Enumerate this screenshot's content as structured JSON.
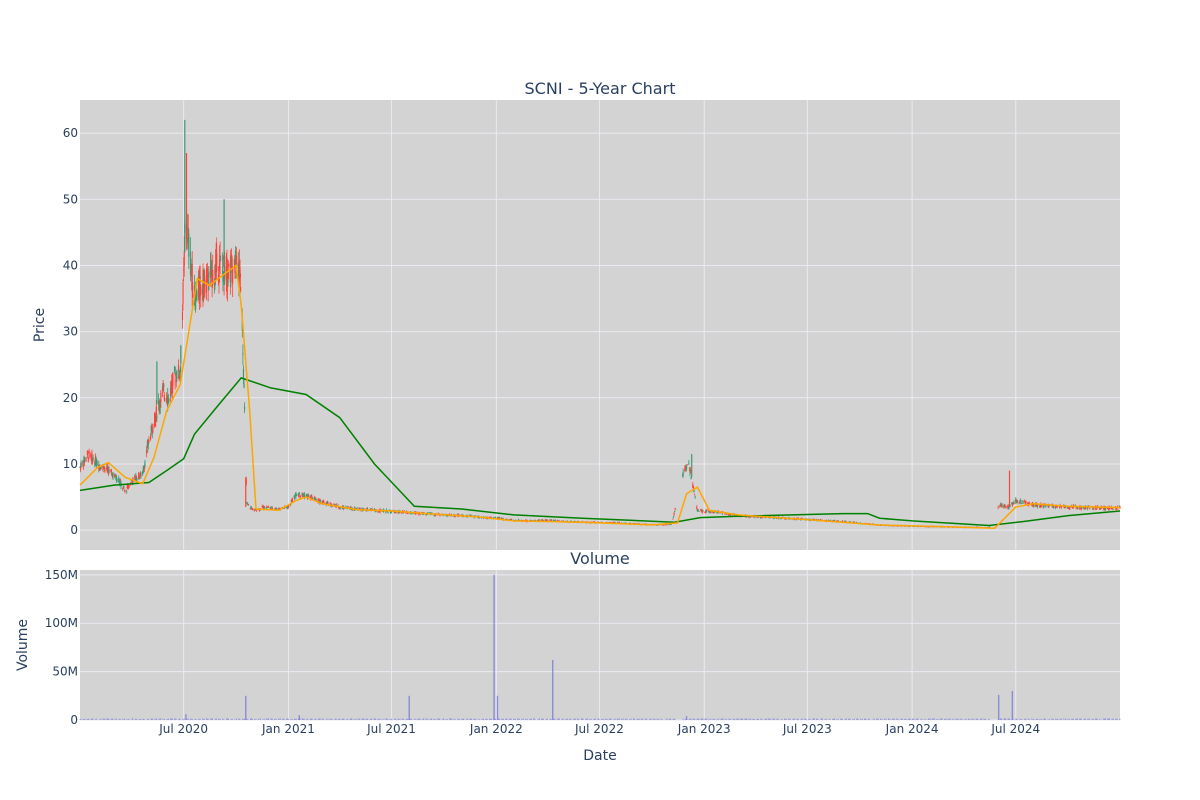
{
  "chart_data": [
    {
      "type": "candlestick",
      "title": "SCNI - 5-Year Chart",
      "ylabel": "Price",
      "ylim": [
        -3,
        65
      ],
      "yticks": [
        0,
        10,
        20,
        30,
        40,
        50,
        60
      ],
      "grid": true,
      "colors": {
        "up": "#3d9970",
        "down": "#ff4136",
        "ma_short": "#ffa500",
        "ma_long": "#008000",
        "background": "#d3d3d3",
        "grid": "#eaeaf2"
      },
      "price_points": [
        [
          "2020-01-01",
          9.5
        ],
        [
          "2020-01-15",
          11.5
        ],
        [
          "2020-02-01",
          10
        ],
        [
          "2020-02-20",
          9
        ],
        [
          "2020-03-10",
          7.5
        ],
        [
          "2020-03-20",
          5.8
        ],
        [
          "2020-04-01",
          7.5
        ],
        [
          "2020-04-20",
          8.5
        ],
        [
          "2020-05-01",
          13.5
        ],
        [
          "2020-05-15",
          18
        ],
        [
          "2020-05-25",
          21
        ],
        [
          "2020-06-05",
          20
        ],
        [
          "2020-06-15",
          23.5
        ],
        [
          "2020-06-25",
          24
        ],
        [
          "2020-07-01",
          38
        ],
        [
          "2020-07-04",
          47
        ],
        [
          "2020-07-10",
          43
        ],
        [
          "2020-07-20",
          35
        ],
        [
          "2020-08-01",
          37
        ],
        [
          "2020-08-15",
          38
        ],
        [
          "2020-09-01",
          40
        ],
        [
          "2020-09-15",
          39
        ],
        [
          "2020-10-01",
          40
        ],
        [
          "2020-10-10",
          38
        ],
        [
          "2020-10-20",
          4
        ],
        [
          "2020-11-01",
          3
        ],
        [
          "2020-11-20",
          3.5
        ],
        [
          "2020-12-15",
          3.2
        ],
        [
          "2021-01-01",
          3.5
        ],
        [
          "2021-01-15",
          5.5
        ],
        [
          "2021-02-01",
          5.2
        ],
        [
          "2021-03-01",
          4.2
        ],
        [
          "2021-04-01",
          3.5
        ],
        [
          "2021-05-01",
          3.2
        ],
        [
          "2021-06-01",
          3
        ],
        [
          "2021-07-01",
          2.8
        ],
        [
          "2021-08-01",
          2.6
        ],
        [
          "2021-09-01",
          2.5
        ],
        [
          "2021-10-01",
          2.3
        ],
        [
          "2021-11-01",
          2.2
        ],
        [
          "2021-12-01",
          2
        ],
        [
          "2022-01-01",
          1.8
        ],
        [
          "2022-02-01",
          1.5
        ],
        [
          "2022-03-01",
          1.4
        ],
        [
          "2022-04-01",
          1.5
        ],
        [
          "2022-05-01",
          1.3
        ],
        [
          "2022-06-01",
          1.2
        ],
        [
          "2022-08-01",
          1.1
        ],
        [
          "2022-10-01",
          0.8
        ],
        [
          "2022-11-05",
          0.9
        ],
        [
          "2022-11-25",
          8.5
        ],
        [
          "2022-12-05",
          10
        ],
        [
          "2022-12-20",
          3
        ],
        [
          "2023-01-15",
          2.8
        ],
        [
          "2023-03-01",
          2.2
        ],
        [
          "2023-05-01",
          1.9
        ],
        [
          "2023-07-01",
          1.6
        ],
        [
          "2023-09-01",
          1.3
        ],
        [
          "2023-11-01",
          0.8
        ],
        [
          "2024-01-01",
          0.6
        ],
        [
          "2024-03-01",
          0.5
        ],
        [
          "2024-05-15",
          0.4
        ],
        [
          "2024-06-01",
          3.8
        ],
        [
          "2024-06-20",
          3.5
        ],
        [
          "2024-07-01",
          4.5
        ],
        [
          "2024-08-01",
          3.8
        ],
        [
          "2024-10-01",
          3.5
        ],
        [
          "2024-12-31",
          3.3
        ]
      ],
      "ma_short_points": [
        [
          "2020-01-01",
          6.8
        ],
        [
          "2020-02-01",
          9.5
        ],
        [
          "2020-02-20",
          10.2
        ],
        [
          "2020-03-20",
          8
        ],
        [
          "2020-04-20",
          7
        ],
        [
          "2020-05-10",
          11
        ],
        [
          "2020-06-01",
          18
        ],
        [
          "2020-06-25",
          22
        ],
        [
          "2020-07-10",
          30
        ],
        [
          "2020-07-25",
          38
        ],
        [
          "2020-08-15",
          37
        ],
        [
          "2020-09-15",
          39
        ],
        [
          "2020-10-01",
          40
        ],
        [
          "2020-10-10",
          34
        ],
        [
          "2020-10-25",
          18
        ],
        [
          "2020-11-05",
          3.2
        ],
        [
          "2020-12-15",
          3
        ],
        [
          "2021-01-15",
          4.5
        ],
        [
          "2021-02-01",
          5
        ],
        [
          "2021-03-01",
          4
        ],
        [
          "2021-05-01",
          3.1
        ],
        [
          "2021-07-01",
          2.9
        ],
        [
          "2021-09-01",
          2.5
        ],
        [
          "2021-12-01",
          2
        ],
        [
          "2022-02-01",
          1.4
        ],
        [
          "2022-06-01",
          1.2
        ],
        [
          "2022-10-01",
          0.8
        ],
        [
          "2022-11-15",
          1.1
        ],
        [
          "2022-12-01",
          5.5
        ],
        [
          "2022-12-20",
          6.5
        ],
        [
          "2023-01-10",
          3
        ],
        [
          "2023-03-01",
          2.3
        ],
        [
          "2023-07-01",
          1.6
        ],
        [
          "2023-11-01",
          0.8
        ],
        [
          "2024-03-01",
          0.5
        ],
        [
          "2024-05-25",
          0.3
        ],
        [
          "2024-07-01",
          3.5
        ],
        [
          "2024-08-01",
          4
        ],
        [
          "2024-10-01",
          3.6
        ],
        [
          "2024-12-31",
          3.4
        ]
      ],
      "ma_long_points": [
        [
          "2020-01-01",
          6
        ],
        [
          "2020-03-01",
          6.8
        ],
        [
          "2020-05-01",
          7.2
        ],
        [
          "2020-06-01",
          9
        ],
        [
          "2020-07-01",
          10.8
        ],
        [
          "2020-07-20",
          14.5
        ],
        [
          "2020-09-01",
          19
        ],
        [
          "2020-10-10",
          23
        ],
        [
          "2020-12-01",
          21.5
        ],
        [
          "2021-02-01",
          20.5
        ],
        [
          "2021-04-01",
          17
        ],
        [
          "2021-06-01",
          10
        ],
        [
          "2021-08-10",
          3.6
        ],
        [
          "2021-11-01",
          3.2
        ],
        [
          "2022-02-01",
          2.3
        ],
        [
          "2022-06-01",
          1.8
        ],
        [
          "2022-11-10",
          1.2
        ],
        [
          "2022-12-25",
          1.9
        ],
        [
          "2023-03-01",
          2.1
        ],
        [
          "2023-09-01",
          2.5
        ],
        [
          "2023-10-15",
          2.5
        ],
        [
          "2023-11-05",
          1.8
        ],
        [
          "2024-01-01",
          1.4
        ],
        [
          "2024-05-15",
          0.7
        ],
        [
          "2024-07-15",
          1.3
        ],
        [
          "2024-10-01",
          2.2
        ],
        [
          "2024-12-31",
          2.9
        ]
      ]
    },
    {
      "type": "bar",
      "title": "Volume",
      "xlabel": "Date",
      "ylabel": "Volume",
      "ylim": [
        0,
        155000000
      ],
      "yticks": [
        0,
        50000000,
        100000000,
        150000000
      ],
      "ytick_labels": [
        "0",
        "50M",
        "100M",
        "150M"
      ],
      "xticks": [
        "2020-07-01",
        "2021-01-01",
        "2021-07-01",
        "2022-01-01",
        "2022-07-01",
        "2023-01-01",
        "2023-07-01",
        "2024-01-01",
        "2024-07-01"
      ],
      "xtick_labels": [
        "Jul 2020",
        "Jan 2021",
        "Jul 2021",
        "Jan 2022",
        "Jul 2022",
        "Jan 2023",
        "Jul 2023",
        "Jan 2024",
        "Jul 2024"
      ],
      "xlim": [
        "2020-01-01",
        "2024-12-31"
      ],
      "grid": true,
      "color": "#7b7bd6",
      "spikes": [
        [
          "2020-07-05",
          6000000
        ],
        [
          "2020-10-18",
          25000000
        ],
        [
          "2021-01-20",
          5000000
        ],
        [
          "2021-08-01",
          25000000
        ],
        [
          "2021-12-28",
          150000000
        ],
        [
          "2022-01-03",
          25000000
        ],
        [
          "2022-04-10",
          62000000
        ],
        [
          "2022-12-01",
          4000000
        ],
        [
          "2024-06-01",
          26000000
        ],
        [
          "2024-06-25",
          30000000
        ]
      ]
    }
  ]
}
